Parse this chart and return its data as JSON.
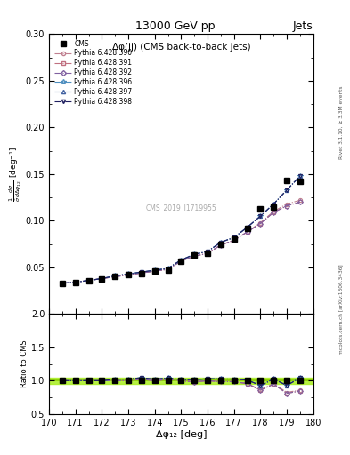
{
  "title_top": "13000 GeV pp",
  "title_right": "Jets",
  "plot_title": "Δφ(jj) (CMS back-to-back jets)",
  "xlabel": "Δφ₁₂ [deg]",
  "ylabel_main": "$\\frac{1}{\\bar{\\sigma}}\\frac{d\\sigma}{d\\Delta\\phi_{12}}$ [deg$^{-1}$]",
  "ylabel_ratio": "Ratio to CMS",
  "watermark": "CMS_2019_I1719955",
  "rivet_text": "Rivet 3.1.10, ≥ 3.3M events",
  "arxiv_text": "mcplots.cern.ch [arXiv:1306.3436]",
  "xlim": [
    170,
    180
  ],
  "ylim_main": [
    0.0,
    0.3
  ],
  "ylim_ratio": [
    0.5,
    2.0
  ],
  "yticks_main": [
    0.05,
    0.1,
    0.15,
    0.2,
    0.25,
    0.3
  ],
  "yticks_ratio": [
    0.5,
    1.0,
    1.5,
    2.0
  ],
  "xticks": [
    170,
    171,
    172,
    173,
    174,
    175,
    176,
    177,
    178,
    179,
    180
  ],
  "x_data": [
    170.5,
    171.0,
    171.5,
    172.0,
    172.5,
    173.0,
    173.5,
    174.0,
    174.5,
    175.0,
    175.5,
    176.0,
    176.5,
    177.0,
    177.5,
    178.0,
    178.5,
    179.0,
    179.5
  ],
  "cms_y": [
    0.033,
    0.034,
    0.036,
    0.038,
    0.04,
    0.042,
    0.043,
    0.046,
    0.047,
    0.057,
    0.063,
    0.065,
    0.075,
    0.08,
    0.092,
    0.113,
    0.115,
    0.143,
    0.142
  ],
  "pythia_390": [
    0.033,
    0.034,
    0.036,
    0.038,
    0.04,
    0.042,
    0.044,
    0.046,
    0.048,
    0.057,
    0.062,
    0.065,
    0.074,
    0.079,
    0.088,
    0.098,
    0.11,
    0.118,
    0.122
  ],
  "pythia_391": [
    0.033,
    0.034,
    0.036,
    0.038,
    0.04,
    0.042,
    0.044,
    0.046,
    0.048,
    0.057,
    0.062,
    0.065,
    0.074,
    0.079,
    0.088,
    0.097,
    0.109,
    0.116,
    0.12
  ],
  "pythia_392": [
    0.033,
    0.034,
    0.036,
    0.038,
    0.04,
    0.042,
    0.044,
    0.046,
    0.048,
    0.057,
    0.062,
    0.065,
    0.074,
    0.079,
    0.088,
    0.097,
    0.109,
    0.116,
    0.12
  ],
  "pythia_396": [
    0.033,
    0.034,
    0.036,
    0.038,
    0.041,
    0.043,
    0.045,
    0.047,
    0.049,
    0.058,
    0.064,
    0.067,
    0.077,
    0.082,
    0.093,
    0.105,
    0.118,
    0.133,
    0.148
  ],
  "pythia_397": [
    0.033,
    0.034,
    0.036,
    0.038,
    0.041,
    0.043,
    0.045,
    0.047,
    0.049,
    0.058,
    0.064,
    0.067,
    0.077,
    0.082,
    0.093,
    0.105,
    0.118,
    0.133,
    0.148
  ],
  "pythia_398": [
    0.033,
    0.034,
    0.036,
    0.038,
    0.041,
    0.043,
    0.045,
    0.047,
    0.049,
    0.058,
    0.064,
    0.067,
    0.077,
    0.082,
    0.093,
    0.105,
    0.118,
    0.133,
    0.148
  ],
  "color_390": "#c08090",
  "color_391": "#c07080",
  "color_392": "#8060a0",
  "color_396": "#5090c0",
  "color_397": "#4060a0",
  "color_398": "#202060",
  "cms_color": "black"
}
